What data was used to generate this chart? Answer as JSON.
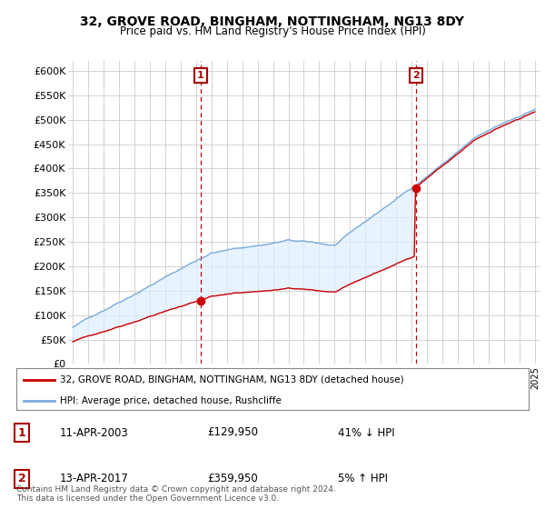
{
  "title": "32, GROVE ROAD, BINGHAM, NOTTINGHAM, NG13 8DY",
  "subtitle": "Price paid vs. HM Land Registry's House Price Index (HPI)",
  "ylim": [
    0,
    620000
  ],
  "yticks": [
    0,
    50000,
    100000,
    150000,
    200000,
    250000,
    300000,
    350000,
    400000,
    450000,
    500000,
    550000,
    600000
  ],
  "sale1_x": 2003.28,
  "sale1_price": 129950,
  "sale2_x": 2017.28,
  "sale2_price": 359950,
  "line_color_property": "#cc0000",
  "line_color_hpi": "#7aabdc",
  "fill_color_hpi": "#ddeeff",
  "vline_color": "#cc0000",
  "legend_label_property": "32, GROVE ROAD, BINGHAM, NOTTINGHAM, NG13 8DY (detached house)",
  "legend_label_hpi": "HPI: Average price, detached house, Rushcliffe",
  "table_rows": [
    {
      "num": "1",
      "date": "11-APR-2003",
      "price": "£129,950",
      "hpi": "41% ↓ HPI"
    },
    {
      "num": "2",
      "date": "13-APR-2017",
      "price": "£359,950",
      "hpi": "5% ↑ HPI"
    }
  ],
  "footnote": "Contains HM Land Registry data © Crown copyright and database right 2024.\nThis data is licensed under the Open Government Licence v3.0.",
  "background_color": "#ffffff",
  "grid_color": "#cccccc"
}
